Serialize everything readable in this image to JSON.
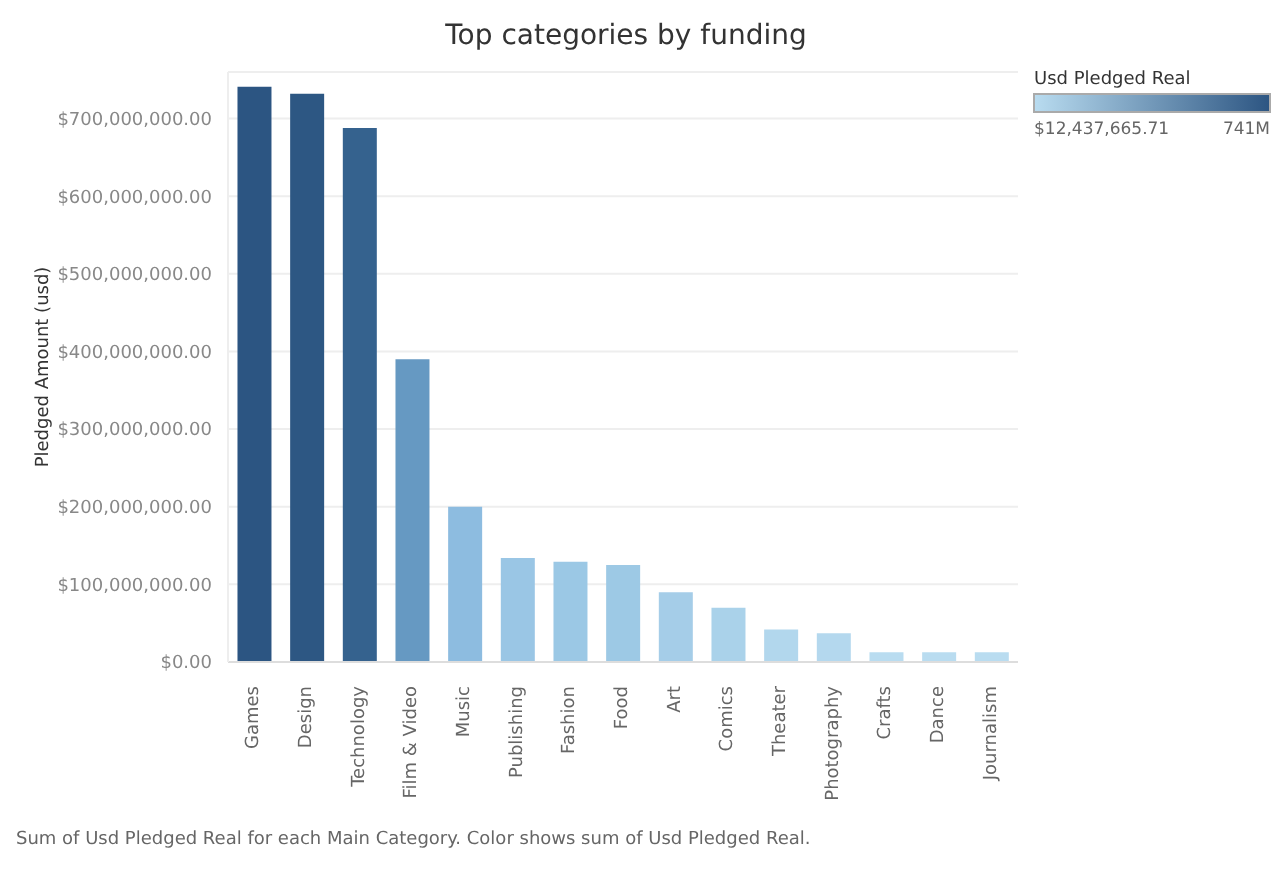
{
  "chart_data": {
    "type": "bar",
    "title": "Top categories by funding",
    "ylabel": "Pledged Amount (usd)",
    "clabel": "Usd Pledged Real",
    "categories": [
      "Games",
      "Design",
      "Technology",
      "Film & Video",
      "Music",
      "Publishing",
      "Fashion",
      "Food",
      "Art",
      "Comics",
      "Theater",
      "Photography",
      "Crafts",
      "Dance",
      "Journalism"
    ],
    "values": [
      741000000,
      732000000,
      688000000,
      390000000,
      200000000,
      134000000,
      129000000,
      125000000,
      90000000,
      70000000,
      42000000,
      37000000,
      12437665.71,
      12500000,
      12600000
    ],
    "colors": [
      "#2c5582",
      "#2d5783",
      "#35628e",
      "#6699c2",
      "#8dbce0",
      "#9ac6e5",
      "#9bc8e5",
      "#9dc9e5",
      "#a5cde8",
      "#aad2ea",
      "#b2d7ed",
      "#b4d8ee",
      "#b9dcf0",
      "#b9dcf0",
      "#b9dcf0"
    ],
    "ylim": [
      0,
      760000000
    ],
    "yticks": [
      {
        "value": 0,
        "label": "$0.00"
      },
      {
        "value": 100000000,
        "label": "$100,000,000.00"
      },
      {
        "value": 200000000,
        "label": "$200,000,000.00"
      },
      {
        "value": 300000000,
        "label": "$300,000,000.00"
      },
      {
        "value": 400000000,
        "label": "$400,000,000.00"
      },
      {
        "value": 500000000,
        "label": "$500,000,000.00"
      },
      {
        "value": 600000000,
        "label": "$600,000,000.00"
      },
      {
        "value": 700000000,
        "label": "$700,000,000.00"
      }
    ],
    "clim": [
      12437665.71,
      741000000
    ],
    "cticks": [
      {
        "value": 12437665.71,
        "label": "$12,437,665.71"
      },
      {
        "value": 741000000,
        "label": "741M"
      }
    ],
    "grid": "y",
    "annotations": [
      "Sum of Usd Pledged Real for each Main Category.  Color shows sum of Usd Pledged Real."
    ]
  }
}
